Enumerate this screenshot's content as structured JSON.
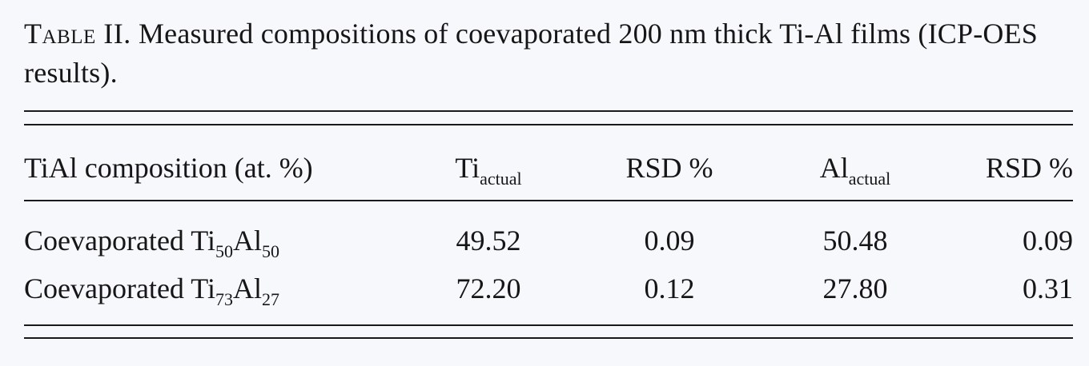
{
  "caption": {
    "label": "Table II.",
    "text": "Measured compositions of coevaporated 200 nm thick Ti-Al films (ICP-OES results)."
  },
  "table": {
    "headers": {
      "composition": "TiAl composition (at. %)",
      "ti_base": "Ti",
      "ti_sub": "actual",
      "rsd_ti": "RSD %",
      "al_base": "Al",
      "al_sub": "actual",
      "rsd_al": "RSD %"
    },
    "rows": [
      {
        "prefix": "Coevaporated Ti",
        "ti_sub": "50",
        "al": "Al",
        "al_sub": "50",
        "ti_actual": "49.52",
        "rsd_ti": "0.09",
        "al_actual": "50.48",
        "rsd_al": "0.09"
      },
      {
        "prefix": "Coevaporated Ti",
        "ti_sub": "73",
        "al": "Al",
        "al_sub": "27",
        "ti_actual": "72.20",
        "rsd_ti": "0.12",
        "al_actual": "27.80",
        "rsd_al": "0.31"
      }
    ]
  }
}
